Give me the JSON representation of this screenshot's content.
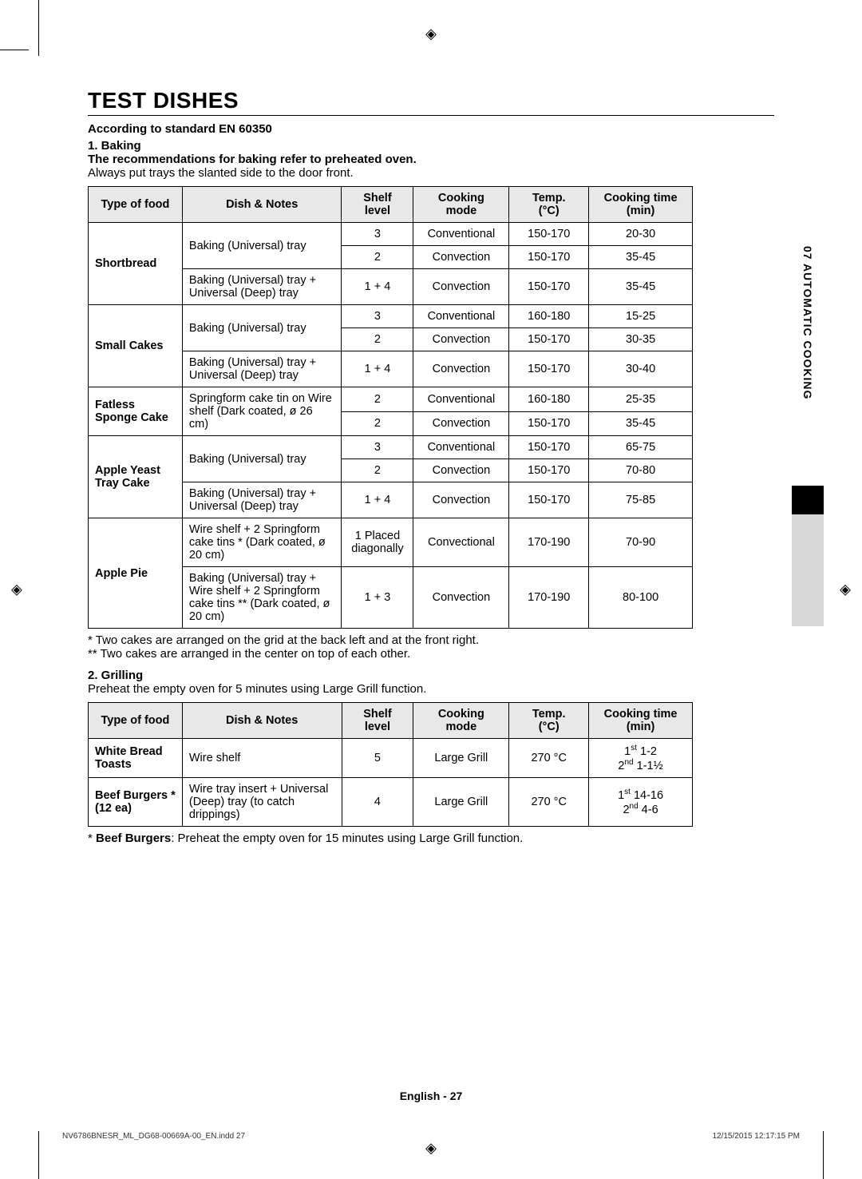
{
  "title": "TEST DISHES",
  "standard_line": "According to standard EN 60350",
  "section1": {
    "num": "1. Baking",
    "note": "The recommendations for baking refer to preheated oven.",
    "plain": "Always put trays the slanted side to the door front."
  },
  "table1": {
    "headers": [
      "Type of food",
      "Dish & Notes",
      "Shelf level",
      "Cooking mode",
      "Temp. (°C)",
      "Cooking time (min)"
    ],
    "rows": [
      {
        "food": "Shortbread",
        "food_rowspan": 3,
        "dish": "Baking (Universal) tray",
        "dish_rowspan": 2,
        "shelf": "3",
        "mode": "Conventional",
        "temp": "150-170",
        "time": "20-30"
      },
      {
        "shelf": "2",
        "mode": "Convection",
        "temp": "150-170",
        "time": "35-45"
      },
      {
        "dish": "Baking (Universal) tray + Universal (Deep) tray",
        "shelf": "1 + 4",
        "mode": "Convection",
        "temp": "150-170",
        "time": "35-45"
      },
      {
        "food": "Small Cakes",
        "food_rowspan": 3,
        "dish": "Baking (Universal) tray",
        "dish_rowspan": 2,
        "shelf": "3",
        "mode": "Conventional",
        "temp": "160-180",
        "time": "15-25"
      },
      {
        "shelf": "2",
        "mode": "Convection",
        "temp": "150-170",
        "time": "30-35"
      },
      {
        "dish": "Baking (Universal) tray + Universal (Deep) tray",
        "shelf": "1 + 4",
        "mode": "Convection",
        "temp": "150-170",
        "time": "30-40"
      },
      {
        "food": "Fatless Sponge Cake",
        "food_rowspan": 2,
        "dish": "Springform cake tin on Wire shelf (Dark coated, ø 26 cm)",
        "dish_rowspan": 2,
        "shelf": "2",
        "mode": "Conventional",
        "temp": "160-180",
        "time": "25-35"
      },
      {
        "shelf": "2",
        "mode": "Convection",
        "temp": "150-170",
        "time": "35-45"
      },
      {
        "food": "Apple Yeast Tray Cake",
        "food_rowspan": 3,
        "dish": "Baking (Universal) tray",
        "dish_rowspan": 2,
        "shelf": "3",
        "mode": "Conventional",
        "temp": "150-170",
        "time": "65-75"
      },
      {
        "shelf": "2",
        "mode": "Convection",
        "temp": "150-170",
        "time": "70-80"
      },
      {
        "dish": "Baking (Universal) tray + Universal (Deep) tray",
        "shelf": "1 + 4",
        "mode": "Convection",
        "temp": "150-170",
        "time": "75-85"
      },
      {
        "food": "Apple Pie",
        "food_rowspan": 2,
        "dish": "Wire shelf + 2 Springform cake tins *\n(Dark coated, ø 20 cm)",
        "shelf": "1 Placed diagonally",
        "mode": "Convectional",
        "temp": "170-190",
        "time": "70-90"
      },
      {
        "dish": "Baking (Universal) tray + Wire shelf + 2 Springform cake tins **\n(Dark coated, ø 20 cm)",
        "shelf": "1 + 3",
        "mode": "Convection",
        "temp": "170-190",
        "time": "80-100"
      }
    ]
  },
  "footnote1": "* Two cakes are arranged on the grid at the back left and at the front right.",
  "footnote2": "** Two cakes are arranged in the center on top of each other.",
  "section2": {
    "num": "2. Grilling",
    "plain": "Preheat the empty oven for 5 minutes using Large Grill function."
  },
  "table2": {
    "headers": [
      "Type of food",
      "Dish & Notes",
      "Shelf level",
      "Cooking mode",
      "Temp. (°C)",
      "Cooking time (min)"
    ],
    "rows": [
      {
        "food": "White Bread Toasts",
        "dish": "Wire shelf",
        "shelf": "5",
        "mode": "Large Grill",
        "temp": "270 °C",
        "time_html": "1<sup>st</sup> 1-2<br>2<sup>nd</sup> 1-1½"
      },
      {
        "food": "Beef Burgers * (12 ea)",
        "dish": "Wire tray insert + Universal (Deep) tray (to catch drippings)",
        "shelf": "4",
        "mode": "Large Grill",
        "temp": "270 °C",
        "time_html": "1<sup>st</sup> 14-16<br>2<sup>nd</sup> 4-6"
      }
    ]
  },
  "footnote3_prefix": "* ",
  "footnote3_bold": "Beef Burgers",
  "footnote3_rest": ": Preheat the empty oven for 15 minutes using Large Grill function.",
  "side_label": "07  AUTOMATIC COOKING",
  "page_footer": "English - 27",
  "print_left": "NV6786BNESR_ML_DG68-00669A-00_EN.indd   27",
  "print_right": "12/15/2015   12:17:15 PM"
}
